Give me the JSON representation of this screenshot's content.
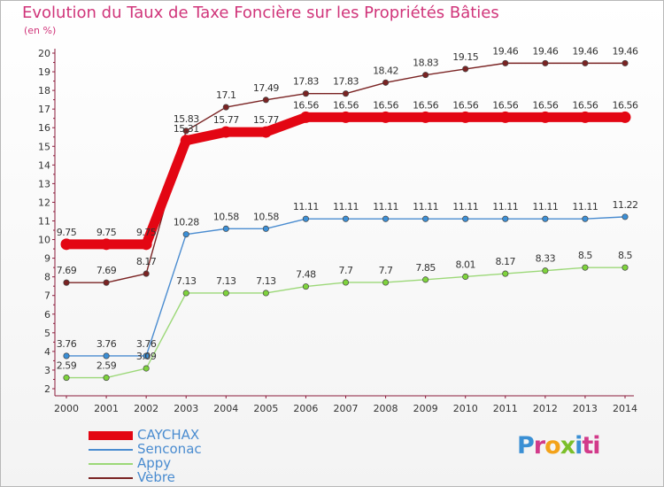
{
  "title": "Evolution du Taux de Taxe Foncière sur les Propriétés Bâties",
  "subtitle": "(en %)",
  "logo": [
    "P",
    "r",
    "o",
    "x",
    "i",
    "ti"
  ],
  "chart_data": {
    "type": "line",
    "categories": [
      "2000",
      "2001",
      "2002",
      "2003",
      "2004",
      "2005",
      "2006",
      "2007",
      "2008",
      "2009",
      "2010",
      "2011",
      "2012",
      "2013",
      "2014"
    ],
    "ylim": [
      2,
      20
    ],
    "yticks": [
      2,
      3,
      4,
      5,
      6,
      7,
      8,
      9,
      10,
      11,
      12,
      13,
      14,
      15,
      16,
      17,
      18,
      19,
      20
    ],
    "grid": false,
    "legend_position": "bottom-left",
    "series": [
      {
        "name": "CAYCHAX",
        "color": "#e30613",
        "bold": true,
        "values": [
          9.75,
          9.75,
          9.75,
          15.31,
          15.77,
          15.77,
          16.56,
          16.56,
          16.56,
          16.56,
          16.56,
          16.56,
          16.56,
          16.56,
          16.56
        ],
        "labels": [
          "9.75",
          "9.75",
          "9.75",
          "15.31",
          "15.77",
          "15.77",
          "16.56",
          "16.56",
          "16.56",
          "16.56",
          "16.56",
          "16.56",
          "16.56",
          "16.56",
          "16.56"
        ]
      },
      {
        "name": "Senconac",
        "color": "#4a8cd0",
        "marker": "#3b8fd6",
        "values": [
          3.76,
          3.76,
          3.76,
          10.28,
          10.58,
          10.58,
          11.11,
          11.11,
          11.11,
          11.11,
          11.11,
          11.11,
          11.11,
          11.11,
          11.22
        ],
        "labels": [
          "3.76",
          "3.76",
          "3.76",
          "10.28",
          "10.58",
          "10.58",
          "11.11",
          "11.11",
          "11.11",
          "11.11",
          "11.11",
          "11.11",
          "11.11",
          "11.11",
          "11.22"
        ]
      },
      {
        "name": "Appy",
        "color": "#9cd878",
        "marker": "#7ed33c",
        "values": [
          2.59,
          2.59,
          3.09,
          7.13,
          7.13,
          7.13,
          7.48,
          7.7,
          7.7,
          7.85,
          8.01,
          8.17,
          8.33,
          8.5,
          8.5
        ],
        "labels": [
          "2.59",
          "2.59",
          "3.09",
          "7.13",
          "7.13",
          "7.13",
          "7.48",
          "7.7",
          "7.7",
          "7.85",
          "8.01",
          "8.17",
          "8.33",
          "8.5",
          "8.5"
        ]
      },
      {
        "name": "Vèbre",
        "color": "#7a2323",
        "marker": "#7a2323",
        "values": [
          7.69,
          7.69,
          8.17,
          15.83,
          17.1,
          17.49,
          17.83,
          17.83,
          18.42,
          18.83,
          19.15,
          19.46,
          19.46,
          19.46,
          19.46
        ],
        "labels": [
          "7.69",
          "7.69",
          "8.17",
          "15.83",
          "17.1",
          "17.49",
          "17.83",
          "17.83",
          "18.42",
          "18.83",
          "19.15",
          "19.46",
          "19.46",
          "19.46",
          "19.46"
        ]
      }
    ]
  }
}
